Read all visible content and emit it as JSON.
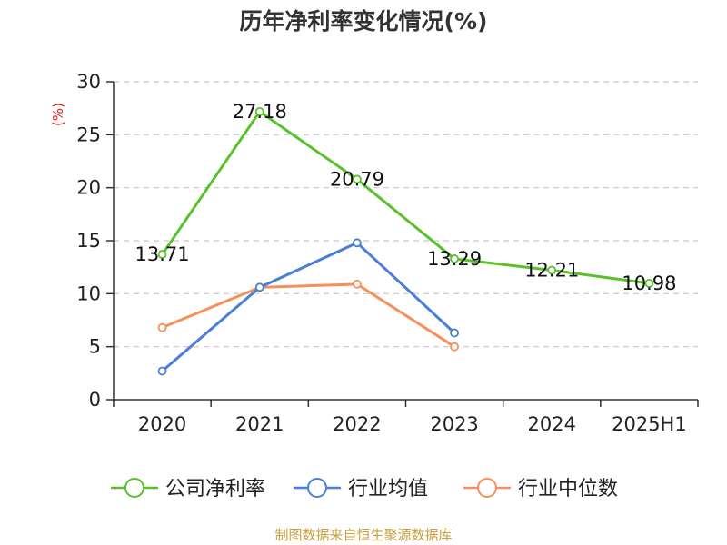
{
  "chart_data": {
    "type": "line",
    "title": "历年净利率变化情况(%)",
    "ylabel": "(%)",
    "categories": [
      "2020",
      "2021",
      "2022",
      "2023",
      "2024",
      "2025H1"
    ],
    "ylim": [
      0,
      30
    ],
    "yticks": [
      0,
      5,
      10,
      15,
      20,
      25,
      30
    ],
    "grid": true,
    "legend_position": "bottom",
    "series": [
      {
        "name": "公司净利率",
        "color": "#5ac12a",
        "values": [
          13.71,
          27.18,
          20.79,
          13.29,
          12.21,
          10.98
        ],
        "labels": [
          "13.71",
          "27.18",
          "20.79",
          "13.29",
          "12.21",
          "10.98"
        ]
      },
      {
        "name": "行业均值",
        "color": "#4a7fd8",
        "values": [
          2.7,
          10.6,
          14.8,
          6.3,
          null,
          null
        ]
      },
      {
        "name": "行业中位数",
        "color": "#f5905a",
        "values": [
          6.8,
          10.6,
          10.9,
          5.0,
          null,
          null
        ]
      }
    ]
  },
  "footer": {
    "source": "制图数据来自恒生聚源数据库"
  }
}
